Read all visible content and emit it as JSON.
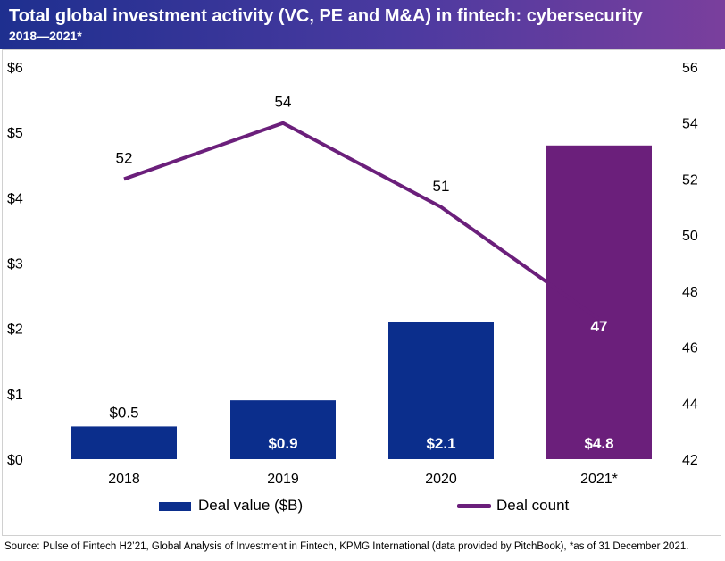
{
  "title": "Total global investment activity (VC, PE and M&A) in fintech: cybersecurity",
  "subtitle": "2018—2021*",
  "source": "Source: Pulse of Fintech H2’21, Global Analysis of Investment in Fintech, KPMG International (data provided by PitchBook), *as of 31 December 2021.",
  "colors": {
    "bar": "#0b2e8c",
    "bar_highlight": "#6b1f7b",
    "line": "#6b1f7b"
  },
  "chart_data": {
    "type": "bar",
    "categories": [
      "2018",
      "2019",
      "2020",
      "2021*"
    ],
    "series": [
      {
        "name": "Deal value ($B)",
        "type": "bar",
        "axis": "left",
        "values": [
          0.5,
          0.9,
          2.1,
          4.8
        ],
        "labels": [
          "$0.5",
          "$0.9",
          "$2.1",
          "$4.8"
        ]
      },
      {
        "name": "Deal count",
        "type": "line",
        "axis": "right",
        "values": [
          52,
          54,
          51,
          47
        ],
        "labels": [
          "52",
          "54",
          "51",
          "47"
        ]
      }
    ],
    "y_left": {
      "min": 0,
      "max": 6,
      "ticks": [
        "$0",
        "$1",
        "$2",
        "$3",
        "$4",
        "$5",
        "$6"
      ]
    },
    "y_right": {
      "min": 42,
      "max": 56,
      "ticks": [
        "42",
        "44",
        "46",
        "48",
        "50",
        "52",
        "54",
        "56"
      ]
    },
    "grid": false,
    "legend_position": "bottom"
  }
}
